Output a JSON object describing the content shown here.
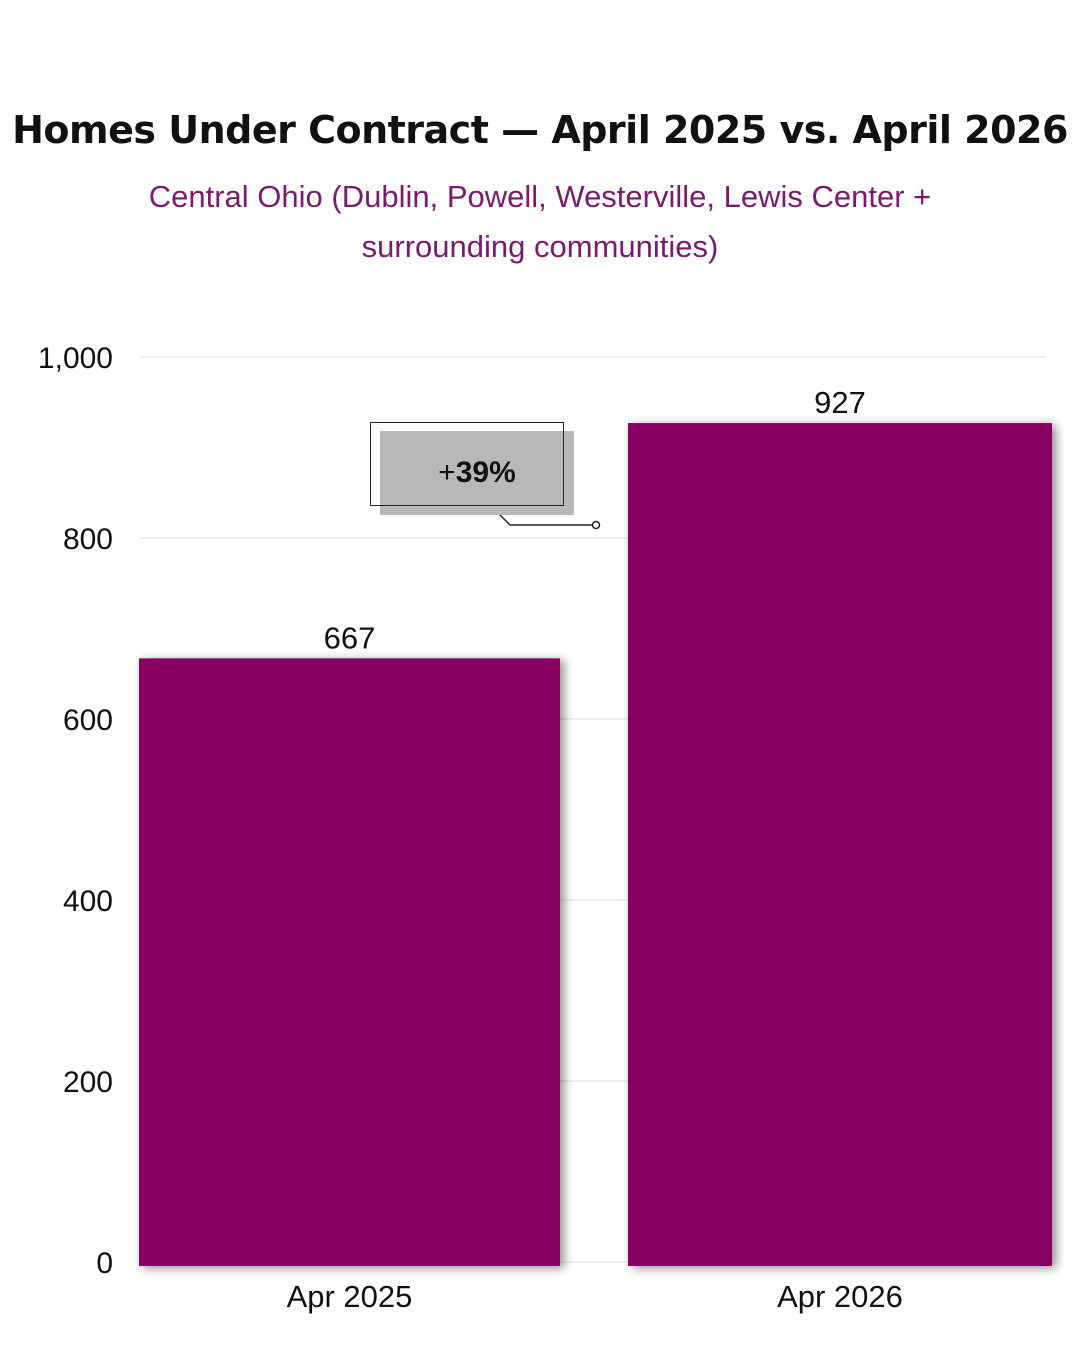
{
  "chart_data": {
    "type": "bar",
    "title": "Homes Under Contract — April 2025 vs. April 2026",
    "subtitle": "Central Ohio (Dublin, Powell, Westerville, Lewis Center + surrounding communities)",
    "categories": [
      "Apr 2025",
      "Apr 2026"
    ],
    "values": [
      667,
      927
    ],
    "data_labels": [
      "667",
      "927"
    ],
    "ylim": [
      0,
      1000
    ],
    "yticks": [
      0,
      200,
      400,
      600,
      800,
      1000
    ],
    "ytick_labels": [
      "0",
      "200",
      "400",
      "600",
      "800",
      "1,000"
    ],
    "grid": true,
    "bar_color": "#8a0563",
    "annotation": {
      "sign": "+",
      "value": "39%"
    }
  }
}
